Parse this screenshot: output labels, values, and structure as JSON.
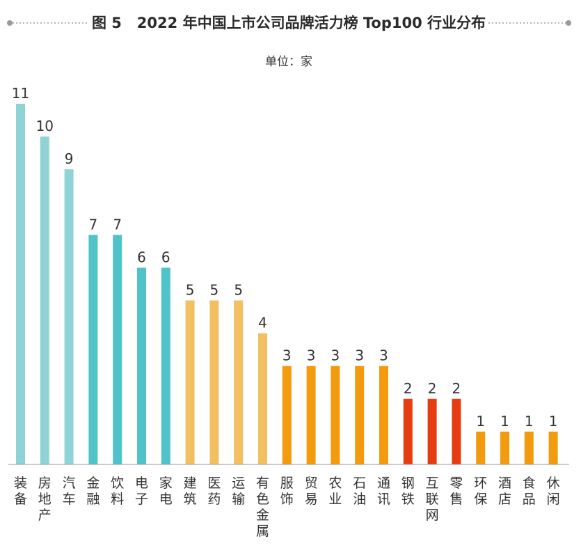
{
  "chart_data": {
    "type": "bar",
    "title": "图 5   2022 年中国上市公司品牌活力榜 Top100 行业分布",
    "unit_label": "单位：家",
    "categories": [
      "装备",
      "房地产",
      "汽车",
      "金融",
      "饮料",
      "电子",
      "家电",
      "建筑",
      "医药",
      "运输",
      "有色金属",
      "服饰",
      "贸易",
      "农业",
      "石油",
      "通讯",
      "钢铁",
      "互联网",
      "零售",
      "环保",
      "酒店",
      "食品",
      "休闲"
    ],
    "values": [
      11,
      10,
      9,
      7,
      7,
      6,
      6,
      5,
      5,
      5,
      4,
      3,
      3,
      3,
      3,
      3,
      2,
      2,
      2,
      1,
      1,
      1,
      1
    ],
    "colors": [
      "#8fd3d6",
      "#8fd3d6",
      "#8fd3d6",
      "#4fc3c9",
      "#4fc3c9",
      "#4fc3c9",
      "#4fc3c9",
      "#f2c060",
      "#f2c060",
      "#f2c060",
      "#f2c060",
      "#f39a0d",
      "#f39a0d",
      "#f39a0d",
      "#f39a0d",
      "#f39a0d",
      "#e63c12",
      "#e63c12",
      "#e63c12",
      "#f39a0d",
      "#f39a0d",
      "#f39a0d",
      "#f39a0d"
    ],
    "ylim": [
      0,
      11
    ],
    "grid": false,
    "legend": "none",
    "xlabel": "",
    "ylabel": ""
  }
}
